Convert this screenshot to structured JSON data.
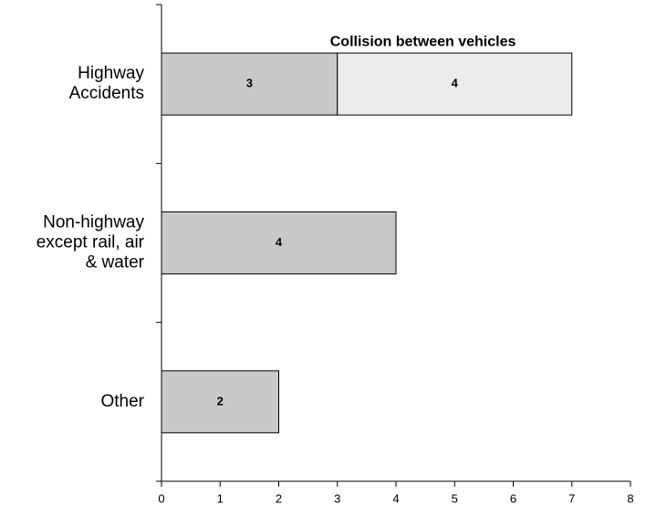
{
  "chart_data": {
    "type": "stacked-barh",
    "categories": [
      "Highway\nAccidents",
      "Non-highway\nexcept rail, air\n& water",
      "Other"
    ],
    "series": [
      {
        "color": "#c9c9c9",
        "values": [
          3,
          4,
          2
        ]
      },
      {
        "name": "Collision between vehicles",
        "color": "#ececec",
        "values": [
          4,
          null,
          null
        ]
      }
    ],
    "xlim": [
      0,
      8
    ],
    "xticks": [
      0,
      1,
      2,
      3,
      4,
      5,
      6,
      7,
      8
    ]
  }
}
